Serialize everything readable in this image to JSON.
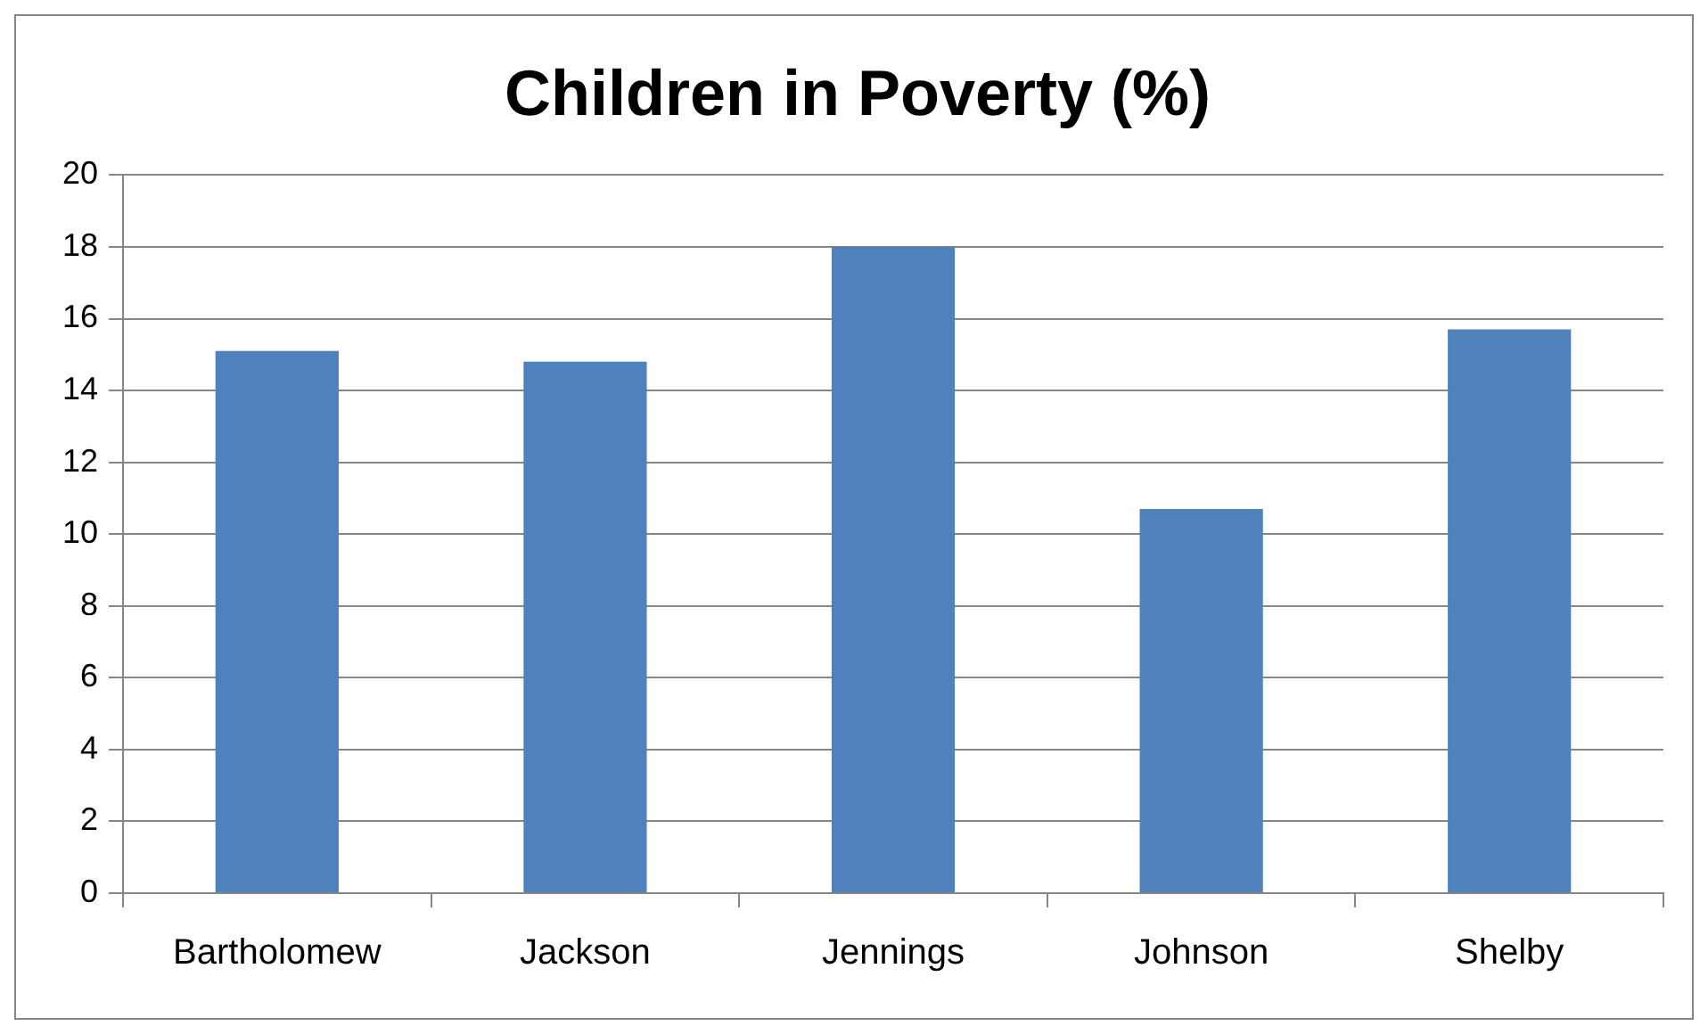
{
  "chart_data": {
    "type": "bar",
    "title": "Children in Poverty (%)",
    "categories": [
      "Bartholomew",
      "Jackson",
      "Jennings",
      "Johnson",
      "Shelby"
    ],
    "values": [
      15.1,
      14.8,
      18.0,
      10.7,
      15.7
    ],
    "color": "#4f81bd",
    "ylim": [
      0,
      20
    ],
    "yticks": [
      0,
      2,
      4,
      6,
      8,
      10,
      12,
      14,
      16,
      18,
      20
    ],
    "grid": "y",
    "legend": false
  }
}
